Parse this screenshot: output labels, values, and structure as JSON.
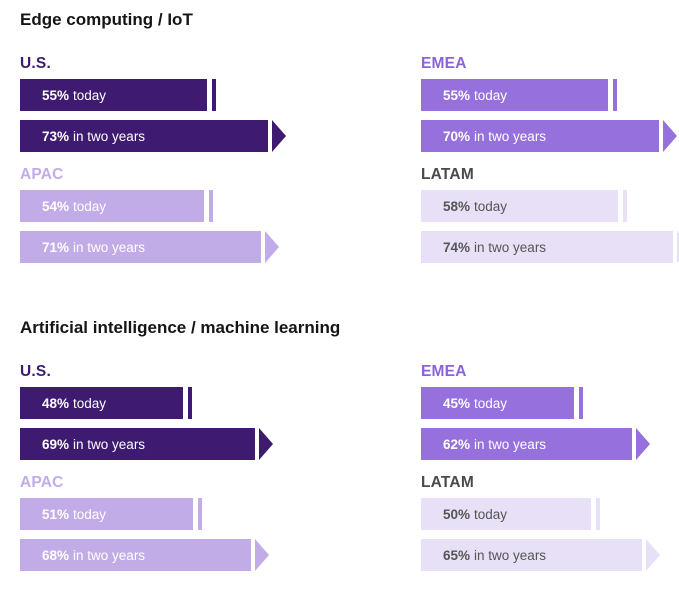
{
  "palette": {
    "us": {
      "bar": "#3e1b70",
      "text": "#ffffff",
      "marker": "#3e1b70",
      "label": "#3e1b70"
    },
    "emea": {
      "bar": "#9670dc",
      "text": "#ffffff",
      "marker": "#9670dc",
      "label": "#8c62d8"
    },
    "apac": {
      "bar": "#c2ace8",
      "text": "#ffffff",
      "marker": "#c2ace8",
      "label": "#c2ace8"
    },
    "latam": {
      "bar": "#e8e0f6",
      "text": "#555555",
      "marker": "#e8e0f6",
      "label": "#4a4a4a"
    }
  },
  "chart_data": [
    {
      "type": "bar",
      "title": "Edge computing / IoT",
      "unit": "%",
      "categories": [
        "today",
        "in two years"
      ],
      "regions": [
        {
          "key": "us",
          "name": "U.S.",
          "values": [
            55,
            73
          ]
        },
        {
          "key": "emea",
          "name": "EMEA",
          "values": [
            55,
            70
          ]
        },
        {
          "key": "apac",
          "name": "APAC",
          "values": [
            54,
            71
          ]
        },
        {
          "key": "latam",
          "name": "LATAM",
          "values": [
            58,
            74
          ]
        }
      ]
    },
    {
      "type": "bar",
      "title": "Artificial intelligence / machine learning",
      "unit": "%",
      "categories": [
        "today",
        "in two years"
      ],
      "regions": [
        {
          "key": "us",
          "name": "U.S.",
          "values": [
            48,
            69
          ]
        },
        {
          "key": "emea",
          "name": "EMEA",
          "values": [
            45,
            62
          ]
        },
        {
          "key": "apac",
          "name": "APAC",
          "values": [
            51,
            68
          ]
        },
        {
          "key": "latam",
          "name": "LATAM",
          "values": [
            50,
            65
          ]
        }
      ]
    }
  ]
}
